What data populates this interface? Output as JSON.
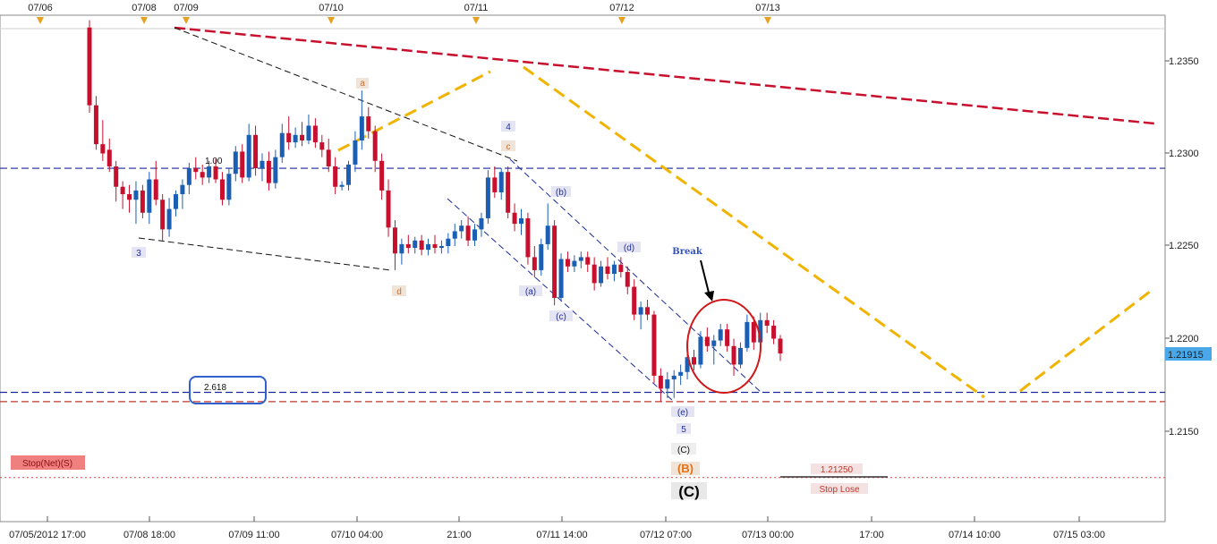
{
  "chart_data": {
    "type": "candlestick",
    "ylim": [
      1.2107,
      1.2385
    ],
    "y_ticks": [
      "1.2350",
      "1.2300",
      "1.2250",
      "1.2200",
      "1.2150"
    ],
    "x_ticks": [
      "07/05/2012 17:00",
      "07/08 18:00",
      "07/09 11:00",
      "07/10 04:00",
      "21:00",
      "07/11 14:00",
      "07/12 07:00",
      "07/13 00:00",
      "17:00",
      "07/14 10:00",
      "07/15 03:00"
    ],
    "top_date_markers": [
      "07/06",
      "07/08",
      "07/09",
      "07/10",
      "07/11",
      "07/12",
      "07/13"
    ],
    "current_price": "1.21915",
    "colors": {
      "up": "#1a5fb4",
      "down": "#c8102e",
      "current_price_bg": "#4aa8e8"
    },
    "candles": [
      [
        1.2368,
        1.2372,
        1.2322,
        1.2326
      ],
      [
        1.2326,
        1.2331,
        1.2302,
        1.2305
      ],
      [
        1.2305,
        1.2318,
        1.2296,
        1.23
      ],
      [
        1.2302,
        1.2308,
        1.229,
        1.2293
      ],
      [
        1.2293,
        1.2296,
        1.2274,
        1.2282
      ],
      [
        1.2282,
        1.2285,
        1.227,
        1.2278
      ],
      [
        1.2278,
        1.2283,
        1.2268,
        1.2275
      ],
      [
        1.2275,
        1.2285,
        1.2262,
        1.228
      ],
      [
        1.228,
        1.2283,
        1.2265,
        1.2268
      ],
      [
        1.2268,
        1.229,
        1.2262,
        1.2286
      ],
      [
        1.2286,
        1.2296,
        1.2272,
        1.2275
      ],
      [
        1.2275,
        1.2278,
        1.2253,
        1.2259
      ],
      [
        1.2259,
        1.2276,
        1.2255,
        1.227
      ],
      [
        1.227,
        1.228,
        1.2266,
        1.2278
      ],
      [
        1.2278,
        1.2286,
        1.227,
        1.2283
      ],
      [
        1.2283,
        1.2295,
        1.2278,
        1.2292
      ],
      [
        1.2292,
        1.2298,
        1.2286,
        1.229
      ],
      [
        1.229,
        1.2294,
        1.2283,
        1.2287
      ],
      [
        1.2287,
        1.2296,
        1.2284,
        1.2293
      ],
      [
        1.2293,
        1.2297,
        1.2284,
        1.2286
      ],
      [
        1.2286,
        1.229,
        1.2272,
        1.2275
      ],
      [
        1.2275,
        1.2292,
        1.2272,
        1.2289
      ],
      [
        1.2289,
        1.2304,
        1.2285,
        1.2301
      ],
      [
        1.2301,
        1.2305,
        1.2284,
        1.2287
      ],
      [
        1.2287,
        1.2316,
        1.2285,
        1.231
      ],
      [
        1.231,
        1.2315,
        1.2288,
        1.2292
      ],
      [
        1.2292,
        1.23,
        1.2285,
        1.2296
      ],
      [
        1.2296,
        1.2301,
        1.228,
        1.2284
      ],
      [
        1.2284,
        1.2302,
        1.2281,
        1.2298
      ],
      [
        1.2298,
        1.2316,
        1.2295,
        1.2311
      ],
      [
        1.2311,
        1.232,
        1.2302,
        1.2306
      ],
      [
        1.2306,
        1.2314,
        1.2303,
        1.231
      ],
      [
        1.231,
        1.2317,
        1.2304,
        1.2307
      ],
      [
        1.2307,
        1.2321,
        1.2305,
        1.2315
      ],
      [
        1.2315,
        1.2319,
        1.2303,
        1.2306
      ],
      [
        1.2306,
        1.231,
        1.2298,
        1.2302
      ],
      [
        1.2302,
        1.2308,
        1.229,
        1.2293
      ],
      [
        1.2293,
        1.2298,
        1.2278,
        1.2282
      ],
      [
        1.2282,
        1.2285,
        1.228,
        1.2283
      ],
      [
        1.2283,
        1.2296,
        1.228,
        1.2294
      ],
      [
        1.2294,
        1.2312,
        1.229,
        1.2307
      ],
      [
        1.2307,
        1.2334,
        1.2302,
        1.232
      ],
      [
        1.232,
        1.2325,
        1.2308,
        1.2312
      ],
      [
        1.2312,
        1.2315,
        1.229,
        1.2296
      ],
      [
        1.2296,
        1.23,
        1.2275,
        1.228
      ],
      [
        1.228,
        1.2286,
        1.2255,
        1.226
      ],
      [
        1.226,
        1.2264,
        1.2237,
        1.2246
      ],
      [
        1.2246,
        1.2254,
        1.224,
        1.2251
      ],
      [
        1.2251,
        1.2256,
        1.2246,
        1.2249
      ],
      [
        1.2249,
        1.2255,
        1.2246,
        1.2253
      ],
      [
        1.2253,
        1.2256,
        1.2245,
        1.2248
      ],
      [
        1.2248,
        1.2254,
        1.2245,
        1.2251
      ],
      [
        1.2251,
        1.2256,
        1.2246,
        1.2249
      ],
      [
        1.2249,
        1.2253,
        1.2246,
        1.225
      ],
      [
        1.225,
        1.2257,
        1.2246,
        1.2254
      ],
      [
        1.2254,
        1.2262,
        1.225,
        1.2258
      ],
      [
        1.2258,
        1.2264,
        1.2254,
        1.2261
      ],
      [
        1.2261,
        1.2266,
        1.225,
        1.2253
      ],
      [
        1.2253,
        1.2262,
        1.225,
        1.2259
      ],
      [
        1.2259,
        1.2268,
        1.2255,
        1.2265
      ],
      [
        1.2265,
        1.2291,
        1.2262,
        1.2287
      ],
      [
        1.2287,
        1.2293,
        1.2276,
        1.2279
      ],
      [
        1.2279,
        1.2292,
        1.2275,
        1.229
      ],
      [
        1.229,
        1.2293,
        1.2265,
        1.2268
      ],
      [
        1.2268,
        1.2273,
        1.2258,
        1.2262
      ],
      [
        1.2262,
        1.227,
        1.2256,
        1.2265
      ],
      [
        1.2265,
        1.2268,
        1.224,
        1.2244
      ],
      [
        1.2244,
        1.225,
        1.2233,
        1.2237
      ],
      [
        1.2237,
        1.2254,
        1.2234,
        1.2251
      ],
      [
        1.2251,
        1.2273,
        1.2248,
        1.2261
      ],
      [
        1.2261,
        1.2264,
        1.2218,
        1.2222
      ],
      [
        1.2222,
        1.2246,
        1.222,
        1.2243
      ],
      [
        1.2243,
        1.2247,
        1.2236,
        1.2239
      ],
      [
        1.2239,
        1.2245,
        1.2236,
        1.2242
      ],
      [
        1.2242,
        1.2247,
        1.2238,
        1.2244
      ],
      [
        1.2244,
        1.2247,
        1.2236,
        1.224
      ],
      [
        1.224,
        1.2244,
        1.2226,
        1.223
      ],
      [
        1.223,
        1.2242,
        1.2228,
        1.2239
      ],
      [
        1.2239,
        1.2244,
        1.2232,
        1.2235
      ],
      [
        1.2235,
        1.2242,
        1.2231,
        1.224
      ],
      [
        1.224,
        1.2244,
        1.2233,
        1.2236
      ],
      [
        1.2236,
        1.2239,
        1.2224,
        1.2228
      ],
      [
        1.2228,
        1.2232,
        1.221,
        1.2213
      ],
      [
        1.2213,
        1.222,
        1.2205,
        1.2217
      ],
      [
        1.2217,
        1.2221,
        1.221,
        1.2213
      ],
      [
        1.2213,
        1.2215,
        1.2176,
        1.218
      ],
      [
        1.218,
        1.2184,
        1.2166,
        1.2173
      ],
      [
        1.2173,
        1.2182,
        1.2168,
        1.2178
      ],
      [
        1.2178,
        1.2183,
        1.2168,
        1.218
      ],
      [
        1.218,
        1.2186,
        1.2175,
        1.2182
      ],
      [
        1.2182,
        1.2193,
        1.2178,
        1.219
      ],
      [
        1.219,
        1.2194,
        1.2183,
        1.2186
      ],
      [
        1.2186,
        1.2204,
        1.2184,
        1.2201
      ],
      [
        1.2201,
        1.2206,
        1.2193,
        1.2196
      ],
      [
        1.2196,
        1.2202,
        1.2186,
        1.2199
      ],
      [
        1.2199,
        1.2208,
        1.2196,
        1.2205
      ],
      [
        1.2205,
        1.2208,
        1.2193,
        1.2196
      ],
      [
        1.2196,
        1.22,
        1.218,
        1.2186
      ],
      [
        1.2186,
        1.2198,
        1.2184,
        1.2195
      ],
      [
        1.2195,
        1.2213,
        1.2193,
        1.2209
      ],
      [
        1.2209,
        1.2212,
        1.2194,
        1.2198
      ],
      [
        1.2198,
        1.2214,
        1.2196,
        1.221
      ],
      [
        1.221,
        1.2214,
        1.2203,
        1.2207
      ],
      [
        1.2207,
        1.221,
        1.2197,
        1.22
      ],
      [
        1.22,
        1.2202,
        1.2188,
        1.2192
      ]
    ],
    "levels": [
      {
        "name": "fib-100-line",
        "value": 1.2292,
        "color": "#1a2a9a",
        "style": "dash"
      },
      {
        "name": "fib-2618-line",
        "value": 1.2171,
        "color": "#1a2a9a",
        "style": "dash"
      },
      {
        "name": "support-line",
        "value": 1.2166,
        "color": "#c0392b",
        "style": "dash"
      },
      {
        "name": "stop-line",
        "value": 1.2125,
        "color": "#e04040",
        "style": "dot"
      }
    ],
    "annotations": {
      "fib_100": "1.00",
      "fib_2618": "2.618",
      "wave_a": "a",
      "wave_c_small": "c",
      "wave_d": "d",
      "wave_3": "3",
      "wave_4": "4",
      "wave_5": "5",
      "wave_pa": "(a)",
      "wave_pb": "(b)",
      "wave_pc": "(c)",
      "wave_pd": "(d)",
      "wave_pe": "(e)",
      "wave_C_paren": "(C)",
      "wave_B": "(B)",
      "wave_C_big": "(C)",
      "break": "Break",
      "stop_net": "Stop(Net)(S)",
      "stop_price": "1.21250",
      "stop_lose": "Stop Lose"
    }
  }
}
